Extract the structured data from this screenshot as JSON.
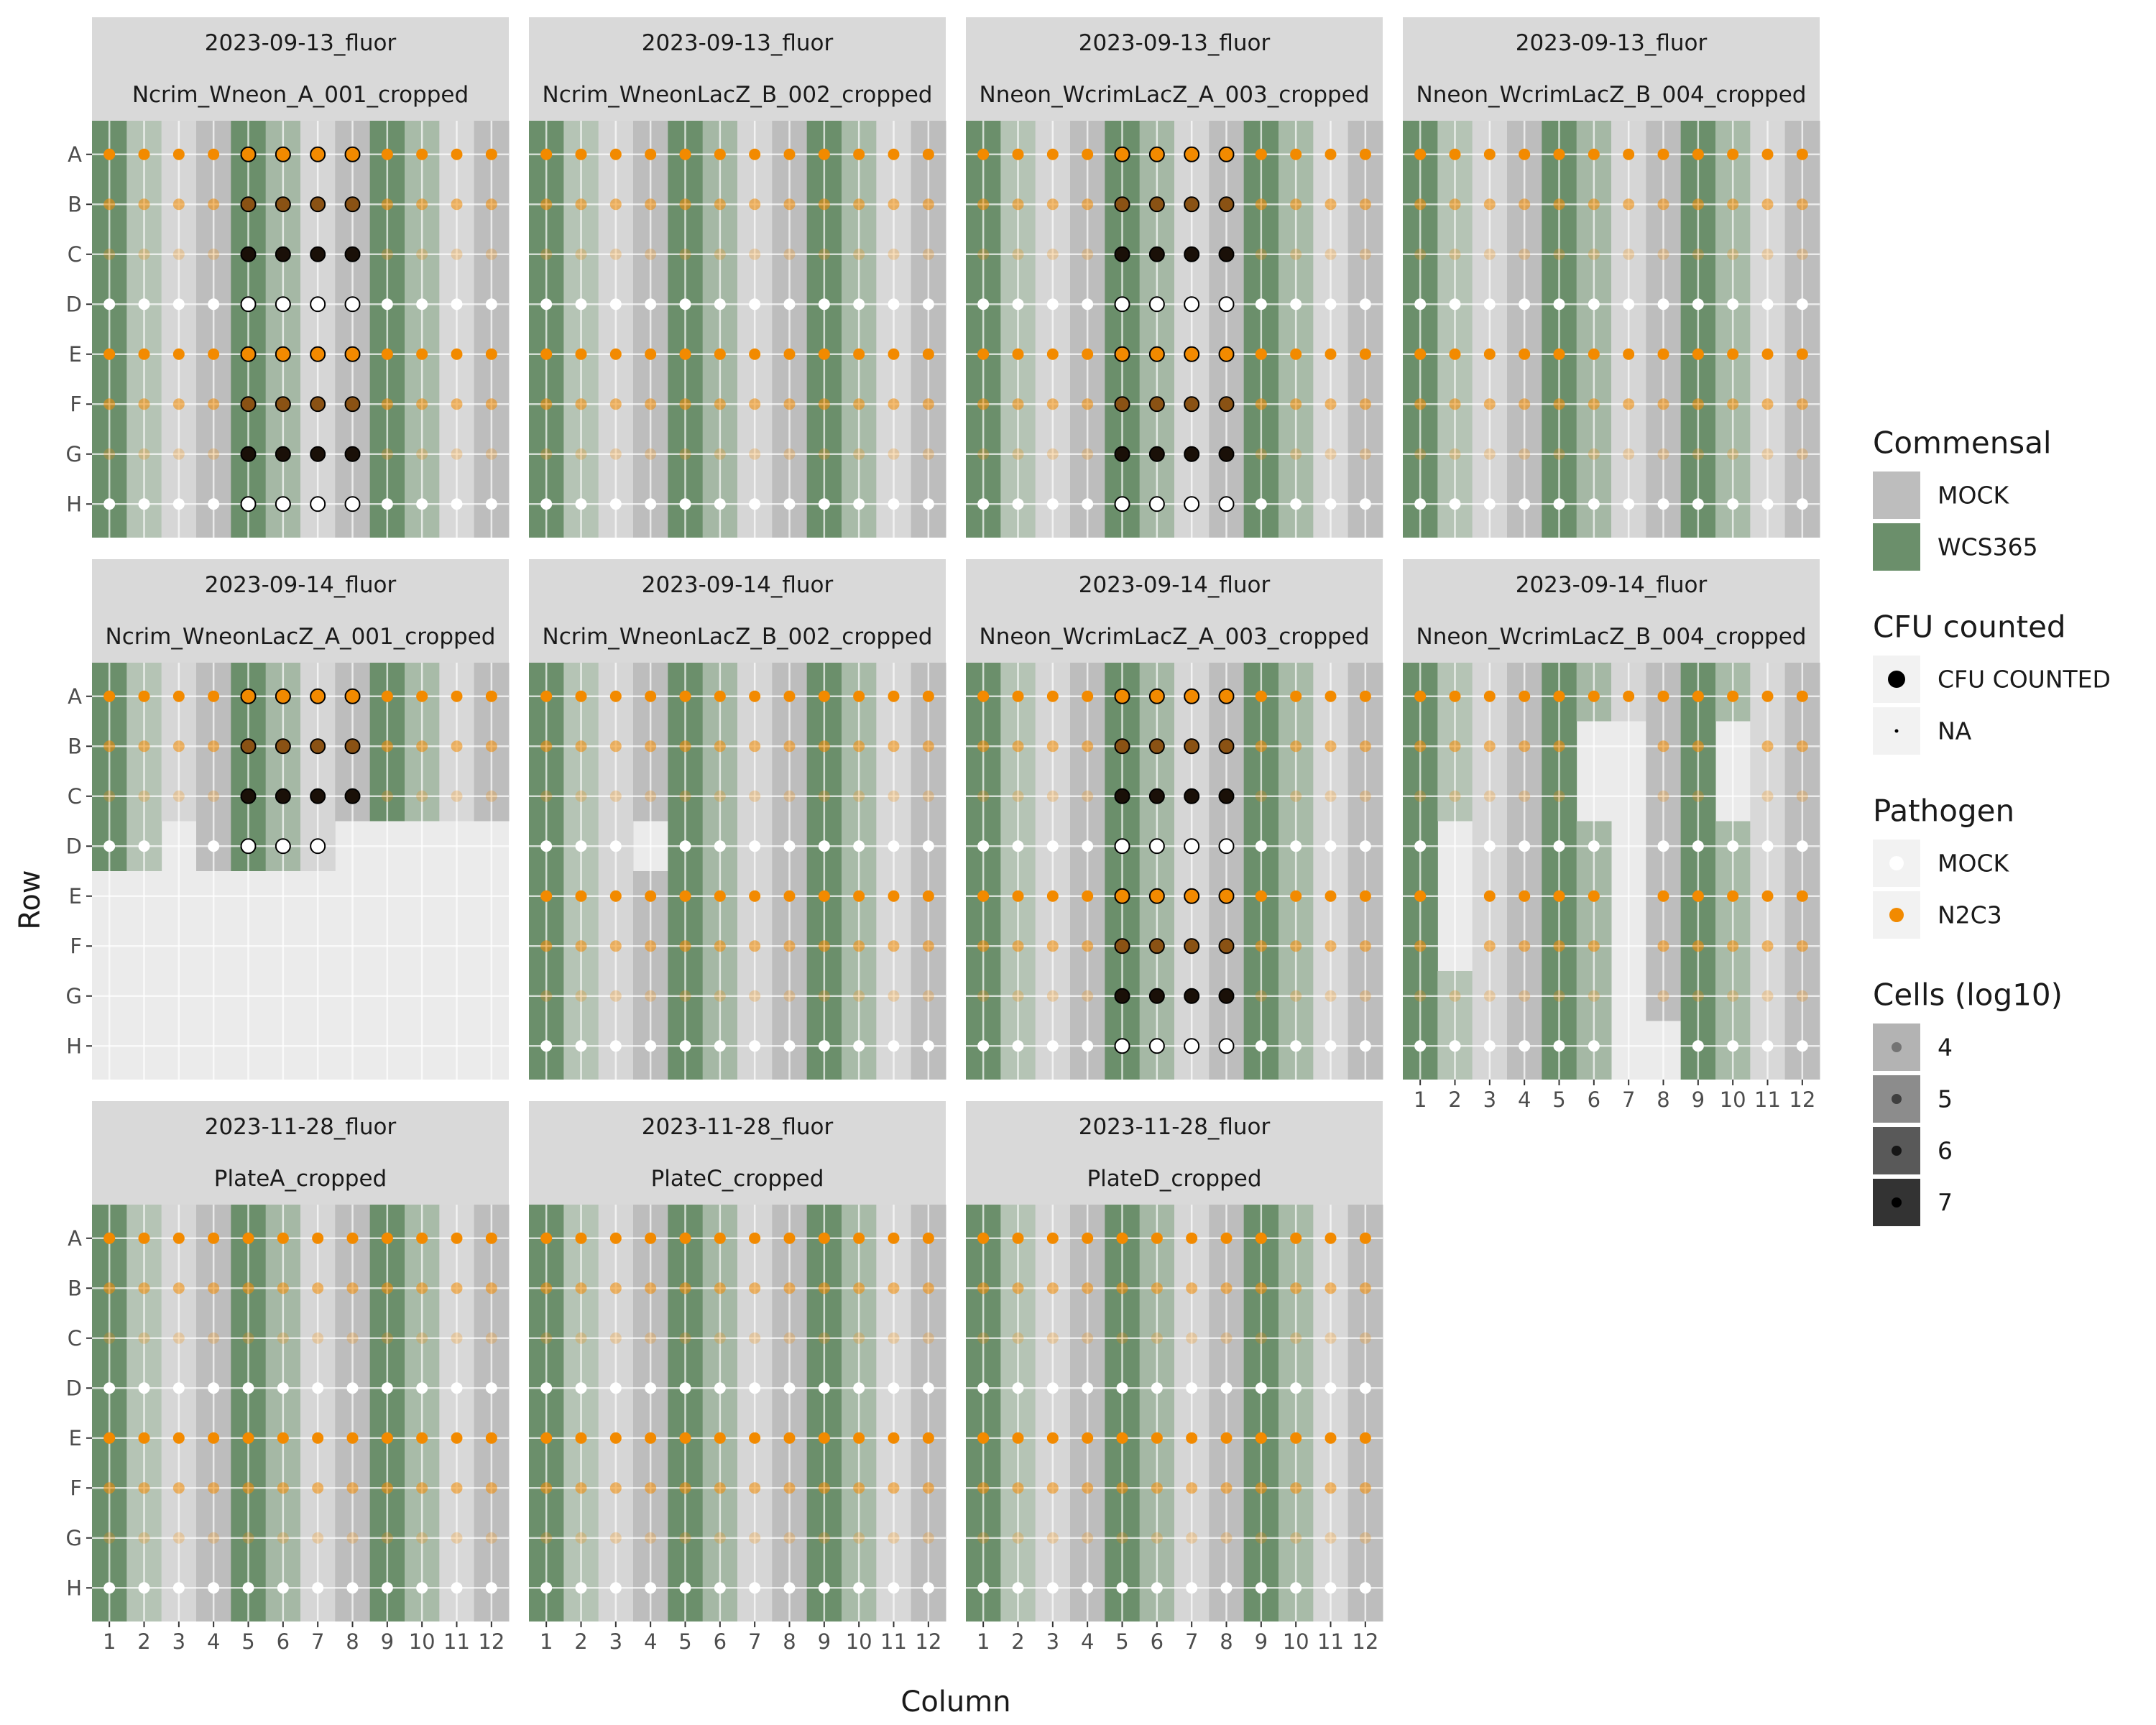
{
  "chart_data": {
    "type": "scatter",
    "title": "",
    "xlabel": "Column",
    "ylabel": "Row",
    "x_ticks": [
      "1",
      "2",
      "3",
      "4",
      "5",
      "6",
      "7",
      "8",
      "9",
      "10",
      "11",
      "12"
    ],
    "y_ticks": [
      "A",
      "B",
      "C",
      "D",
      "E",
      "F",
      "G",
      "H"
    ],
    "background": {
      "comment": "Per-column commensal: W = WCS365, M = MOCK; darker tile = more WCS365 cells",
      "WCS365": "#6b8f6b",
      "MOCK": "#bdbdbd",
      "layout": [
        "W",
        "W",
        "M",
        "M",
        "W",
        "W",
        "M",
        "M",
        "W",
        "W",
        "M",
        "M"
      ]
    },
    "row_styles": {
      "A": {
        "pathogen": "N2C3",
        "cells_log10": 7
      },
      "B": {
        "pathogen": "N2C3",
        "cells_log10": 6
      },
      "C": {
        "pathogen": "N2C3",
        "cells_log10": 5
      },
      "D": {
        "pathogen": "MOCK",
        "cells_log10": null
      },
      "E": {
        "pathogen": "N2C3",
        "cells_log10": 7
      },
      "F": {
        "pathogen": "N2C3",
        "cells_log10": 6
      },
      "G": {
        "pathogen": "N2C3",
        "cells_log10": 5
      },
      "H": {
        "pathogen": "MOCK",
        "cells_log10": null
      }
    },
    "panels": [
      {
        "date": "2023-09-13_fluor",
        "name": "Ncrim_Wneon_A_001_cropped",
        "cfu_cols": [
          5,
          6,
          7,
          8
        ],
        "missing": []
      },
      {
        "date": "2023-09-13_fluor",
        "name": "Ncrim_WneonLacZ_B_002_cropped",
        "cfu_cols": [],
        "missing": []
      },
      {
        "date": "2023-09-13_fluor",
        "name": "Nneon_WcrimLacZ_A_003_cropped",
        "cfu_cols": [
          5,
          6,
          7,
          8
        ],
        "missing": []
      },
      {
        "date": "2023-09-13_fluor",
        "name": "Nneon_WcrimLacZ_B_004_cropped",
        "cfu_cols": [],
        "missing": []
      },
      {
        "date": "2023-09-14_fluor",
        "name": "Ncrim_WneonLacZ_A_001_cropped",
        "cfu_cols": [
          5,
          6,
          7,
          8
        ],
        "missing": [
          [
            3,
            4
          ],
          [
            3,
            5
          ],
          [
            3,
            6
          ],
          [
            3,
            7
          ],
          [
            3,
            8
          ],
          [
            1,
            5
          ],
          [
            2,
            5
          ],
          [
            4,
            5
          ],
          [
            5,
            5
          ],
          [
            6,
            5
          ],
          [
            7,
            5
          ],
          [
            8,
            5
          ],
          [
            8,
            4
          ],
          [
            9,
            4
          ],
          [
            10,
            4
          ],
          [
            11,
            4
          ],
          [
            12,
            4
          ],
          [
            9,
            5
          ],
          [
            10,
            5
          ],
          [
            11,
            5
          ],
          [
            12,
            5
          ],
          [
            1,
            6
          ],
          [
            2,
            6
          ],
          [
            3,
            6
          ],
          [
            4,
            6
          ],
          [
            5,
            6
          ],
          [
            6,
            6
          ],
          [
            7,
            6
          ],
          [
            8,
            6
          ],
          [
            9,
            6
          ],
          [
            10,
            6
          ],
          [
            11,
            6
          ],
          [
            12,
            6
          ],
          [
            1,
            7
          ],
          [
            2,
            7
          ],
          [
            3,
            7
          ],
          [
            4,
            7
          ],
          [
            5,
            7
          ],
          [
            6,
            7
          ],
          [
            7,
            7
          ],
          [
            8,
            7
          ],
          [
            9,
            7
          ],
          [
            10,
            7
          ],
          [
            11,
            7
          ],
          [
            12,
            7
          ],
          [
            1,
            8
          ],
          [
            2,
            8
          ],
          [
            3,
            8
          ],
          [
            4,
            8
          ],
          [
            5,
            8
          ],
          [
            6,
            8
          ],
          [
            7,
            8
          ],
          [
            8,
            8
          ],
          [
            9,
            8
          ],
          [
            10,
            8
          ],
          [
            11,
            8
          ],
          [
            12,
            8
          ]
        ]
      },
      {
        "date": "2023-09-14_fluor",
        "name": "Ncrim_WneonLacZ_B_002_cropped",
        "cfu_cols": [],
        "missing": [
          [
            4,
            4
          ]
        ]
      },
      {
        "date": "2023-09-14_fluor",
        "name": "Nneon_WcrimLacZ_A_003_cropped",
        "cfu_cols": [
          5,
          6,
          7,
          8
        ],
        "missing": []
      },
      {
        "date": "2023-09-14_fluor",
        "name": "Nneon_WcrimLacZ_B_004_cropped",
        "cfu_cols": [],
        "missing": [
          [
            2,
            4
          ],
          [
            2,
            5
          ],
          [
            2,
            6
          ],
          [
            6,
            2
          ],
          [
            6,
            3
          ],
          [
            7,
            2
          ],
          [
            7,
            3
          ],
          [
            7,
            4
          ],
          [
            7,
            5
          ],
          [
            7,
            6
          ],
          [
            7,
            7
          ],
          [
            7,
            8
          ],
          [
            8,
            8
          ],
          [
            10,
            2
          ],
          [
            10,
            3
          ]
        ]
      },
      {
        "date": "2023-11-28_fluor",
        "name": "PlateA_cropped",
        "cfu_cols": [],
        "missing": []
      },
      {
        "date": "2023-11-28_fluor",
        "name": "PlateC_cropped",
        "cfu_cols": [],
        "missing": []
      },
      {
        "date": "2023-11-28_fluor",
        "name": "PlateD_cropped",
        "cfu_cols": [],
        "missing": []
      }
    ],
    "legends": [
      {
        "title": "Commensal",
        "entries": [
          {
            "label": "MOCK",
            "color": "#bdbdbd"
          },
          {
            "label": "WCS365",
            "color": "#6b8f6b"
          }
        ]
      },
      {
        "title": "CFU counted",
        "entries": [
          {
            "label": "CFU COUNTED"
          },
          {
            "label": "NA"
          }
        ]
      },
      {
        "title": "Pathogen",
        "entries": [
          {
            "label": "MOCK",
            "color": "#ffffff"
          },
          {
            "label": "N2C3",
            "color": "#f28a00"
          }
        ]
      },
      {
        "title": "Cells (log10)",
        "entries": [
          {
            "label": "4"
          },
          {
            "label": "5"
          },
          {
            "label": "6"
          },
          {
            "label": "7"
          }
        ]
      }
    ],
    "legend_position": "right",
    "grid": true
  }
}
